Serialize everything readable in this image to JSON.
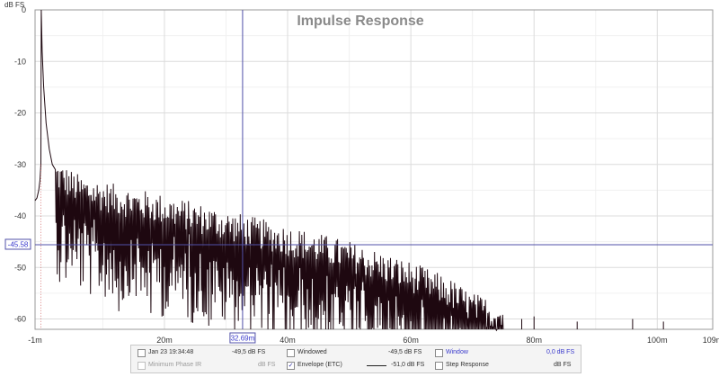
{
  "window": {
    "title": "Impulse Response"
  },
  "chart_data": {
    "type": "line",
    "title": "Impulse Response",
    "ylabel": "dB FS",
    "xlim": [
      -1,
      109
    ],
    "ylim": [
      -62,
      0
    ],
    "x_unit": "ms",
    "xticks": [
      {
        "v": -1,
        "label": "-1m"
      },
      {
        "v": 20,
        "label": "20m"
      },
      {
        "v": 40,
        "label": "40m"
      },
      {
        "v": 60,
        "label": "60m"
      },
      {
        "v": 80,
        "label": "80m"
      },
      {
        "v": 100,
        "label": "100m"
      },
      {
        "v": 109,
        "label": "109m"
      }
    ],
    "yticks": [
      {
        "v": 0,
        "label": "0"
      },
      {
        "v": -10,
        "label": "-10"
      },
      {
        "v": -20,
        "label": "-20"
      },
      {
        "v": -30,
        "label": "-30"
      },
      {
        "v": -40,
        "label": "-40"
      },
      {
        "v": -50,
        "label": "-50"
      },
      {
        "v": -60,
        "label": "-60"
      }
    ],
    "grid": true,
    "cursor": {
      "x": 32.69,
      "x_label": "32.69m",
      "y": -45.58,
      "y_label": "-45.58"
    },
    "series": [
      {
        "color": "#1e0810",
        "peak": {
          "x": 0.0,
          "y": 0
        },
        "envelope_points": [
          [
            -1,
            -37
          ],
          [
            -0.7,
            -36.5
          ],
          [
            -0.4,
            -35
          ],
          [
            -0.2,
            -33
          ],
          [
            -0.05,
            -30
          ],
          [
            0.0,
            0
          ],
          [
            0.15,
            -8
          ],
          [
            0.4,
            -15
          ],
          [
            0.8,
            -22
          ],
          [
            1.3,
            -27
          ],
          [
            1.8,
            -30
          ],
          [
            2.3,
            -31
          ]
        ],
        "noise_profile": [
          [
            2,
            -33
          ],
          [
            6,
            -36
          ],
          [
            12,
            -38
          ],
          [
            20,
            -40
          ],
          [
            30,
            -43
          ],
          [
            40,
            -46
          ],
          [
            50,
            -49
          ],
          [
            60,
            -53
          ],
          [
            66,
            -56
          ],
          [
            70,
            -59
          ],
          [
            75,
            -61
          ]
        ],
        "late_spikes": [
          [
            78,
            -60
          ],
          [
            80,
            -59.5
          ],
          [
            87,
            -60.5
          ],
          [
            96,
            -60
          ],
          [
            101,
            -60.5
          ]
        ]
      }
    ]
  },
  "legend": {
    "row1": {
      "item1": {
        "label": "Jan 23 19:34:48",
        "value": "-49,5 dB FS",
        "checked": false
      },
      "item2": {
        "label": "Windowed",
        "value": "-49,5 dB FS",
        "checked": false
      },
      "item3": {
        "label": "Window",
        "value": "0,0 dB FS",
        "checked": false,
        "color": "#3a3acc"
      }
    },
    "row2": {
      "item1": {
        "label": "Minimum Phase IR",
        "value": "dB FS",
        "checked": false
      },
      "item2": {
        "label": "Envelope (ETC)",
        "value": "-51,0 dB FS",
        "checked": true
      },
      "item3": {
        "label": "Step Response",
        "value": "dB FS",
        "checked": false
      }
    }
  }
}
